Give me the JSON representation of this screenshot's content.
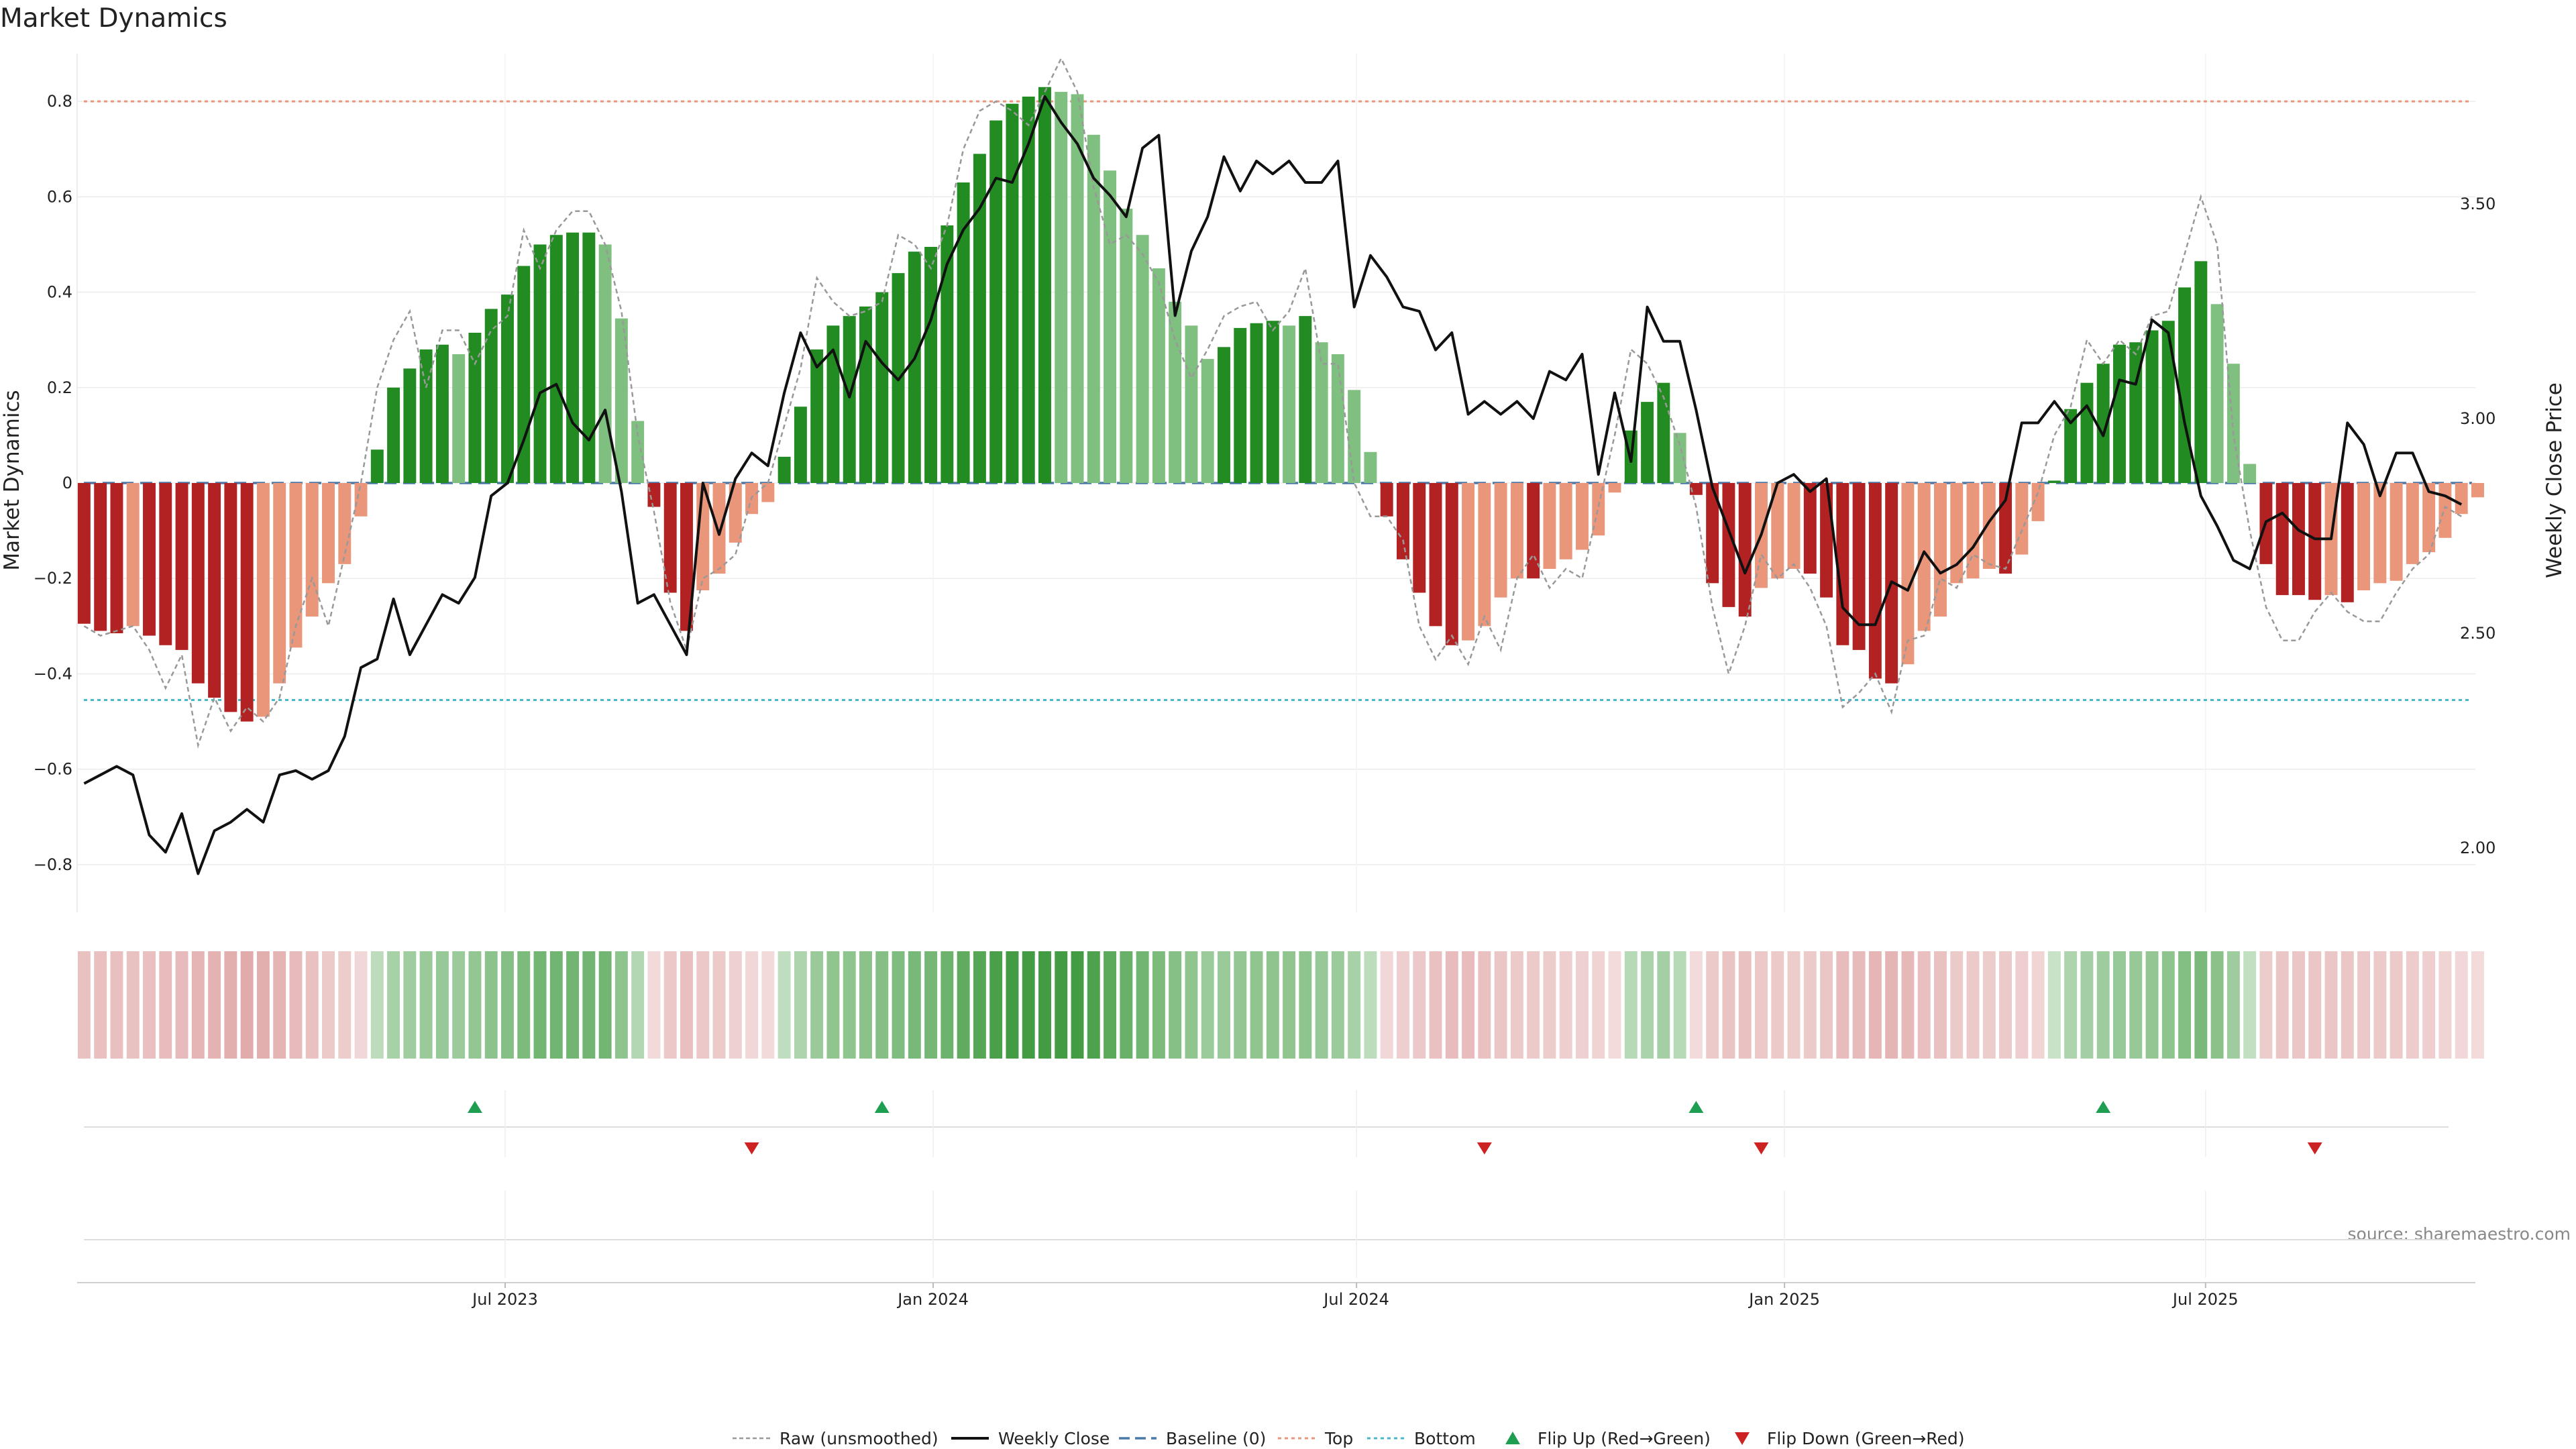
{
  "chart_data": {
    "type": "bar",
    "title": "Market Dynamics",
    "ylabel_left": "Market Dynamics",
    "ylabel_right": "Weekly Close Price",
    "source": "source: sharemaestro.com",
    "ylim_left": [
      -0.9,
      0.9
    ],
    "ylim_right": [
      1.85,
      3.85
    ],
    "yticks_left": [
      {
        "value": 0.8,
        "label": "0.8"
      },
      {
        "value": 0.6,
        "label": "0.6"
      },
      {
        "value": 0.4,
        "label": "0.4"
      },
      {
        "value": 0.2,
        "label": "0.2"
      },
      {
        "value": 0,
        "label": "0"
      },
      {
        "value": -0.2,
        "label": "−0.2"
      },
      {
        "value": -0.4,
        "label": "−0.4"
      },
      {
        "value": -0.6,
        "label": "−0.6"
      },
      {
        "value": -0.8,
        "label": "−0.8"
      }
    ],
    "yticks_right": [
      {
        "value": 3.5,
        "label": "3.50"
      },
      {
        "value": 3.0,
        "label": "3.00"
      },
      {
        "value": 2.5,
        "label": "2.50"
      },
      {
        "value": 2.0,
        "label": "2.00"
      }
    ],
    "x_start": "2023-01-01",
    "x_step_days": 7,
    "xlim": [
      "2022-12-29",
      "2025-10-25"
    ],
    "xticks": [
      {
        "date": "2023-07-01",
        "label": "Jul 2023"
      },
      {
        "date": "2024-01-01",
        "label": "Jan 2024"
      },
      {
        "date": "2024-07-01",
        "label": "Jul 2024"
      },
      {
        "date": "2025-01-01",
        "label": "Jan 2025"
      },
      {
        "date": "2025-07-01",
        "label": "Jul 2025"
      }
    ],
    "top_line": 0.8,
    "bottom_line": -0.455,
    "baseline": 0,
    "colors": {
      "strong_green": "#228B22",
      "light_green": "#7FBF7F",
      "strong_red": "#B22222",
      "light_red": "#E9967A",
      "close_line": "#111111",
      "raw_line": "#999999",
      "top_line": "#E9967A",
      "bottom_line": "#48B8C8",
      "baseline": "#4A78A8",
      "flip_up": "#1E9E50",
      "flip_down": "#CC2222"
    },
    "smoothed": [
      -0.295,
      -0.31,
      -0.315,
      -0.3,
      -0.32,
      -0.34,
      -0.35,
      -0.42,
      -0.45,
      -0.48,
      -0.5,
      -0.49,
      -0.42,
      -0.345,
      -0.28,
      -0.21,
      -0.17,
      -0.07,
      0.07,
      0.2,
      0.24,
      0.28,
      0.29,
      0.27,
      0.315,
      0.365,
      0.395,
      0.455,
      0.5,
      0.52,
      0.525,
      0.525,
      0.5,
      0.345,
      0.13,
      -0.05,
      -0.23,
      -0.31,
      -0.225,
      -0.19,
      -0.125,
      -0.065,
      -0.04,
      0.055,
      0.16,
      0.28,
      0.33,
      0.35,
      0.37,
      0.4,
      0.44,
      0.485,
      0.495,
      0.54,
      0.63,
      0.69,
      0.76,
      0.795,
      0.81,
      0.83,
      0.82,
      0.815,
      0.73,
      0.655,
      0.575,
      0.52,
      0.45,
      0.38,
      0.33,
      0.26,
      0.285,
      0.325,
      0.335,
      0.34,
      0.33,
      0.35,
      0.295,
      0.27,
      0.195,
      0.065,
      -0.07,
      -0.16,
      -0.23,
      -0.3,
      -0.34,
      -0.33,
      -0.3,
      -0.24,
      -0.2,
      -0.2,
      -0.18,
      -0.16,
      -0.14,
      -0.11,
      -0.02,
      0.11,
      0.17,
      0.21,
      0.105,
      -0.025,
      -0.21,
      -0.26,
      -0.28,
      -0.22,
      -0.2,
      -0.18,
      -0.19,
      -0.24,
      -0.34,
      -0.35,
      -0.41,
      -0.42,
      -0.38,
      -0.31,
      -0.28,
      -0.21,
      -0.2,
      -0.18,
      -0.19,
      -0.15,
      -0.08,
      0.005,
      0.155,
      0.21,
      0.25,
      0.29,
      0.295,
      0.32,
      0.34,
      0.41,
      0.465,
      0.375,
      0.25,
      0.04,
      -0.17,
      -0.235,
      -0.235,
      -0.245,
      -0.235,
      -0.25,
      -0.225,
      -0.21,
      -0.205,
      -0.17,
      -0.145,
      -0.115,
      -0.065,
      -0.03
    ],
    "raw": [
      -0.3,
      -0.32,
      -0.31,
      -0.3,
      -0.35,
      -0.43,
      -0.36,
      -0.55,
      -0.45,
      -0.52,
      -0.47,
      -0.5,
      -0.45,
      -0.3,
      -0.2,
      -0.3,
      -0.15,
      0.0,
      0.2,
      0.3,
      0.36,
      0.2,
      0.32,
      0.32,
      0.25,
      0.32,
      0.35,
      0.53,
      0.45,
      0.53,
      0.57,
      0.57,
      0.5,
      0.36,
      0.1,
      -0.06,
      -0.25,
      -0.35,
      -0.2,
      -0.18,
      -0.15,
      -0.03,
      0.0,
      0.12,
      0.24,
      0.43,
      0.38,
      0.35,
      0.36,
      0.38,
      0.52,
      0.5,
      0.45,
      0.54,
      0.7,
      0.78,
      0.8,
      0.78,
      0.75,
      0.82,
      0.89,
      0.82,
      0.62,
      0.5,
      0.52,
      0.48,
      0.42,
      0.3,
      0.22,
      0.28,
      0.35,
      0.37,
      0.38,
      0.32,
      0.36,
      0.45,
      0.25,
      0.25,
      0.0,
      -0.07,
      -0.07,
      -0.12,
      -0.3,
      -0.37,
      -0.32,
      -0.38,
      -0.28,
      -0.35,
      -0.2,
      -0.15,
      -0.22,
      -0.18,
      -0.2,
      -0.05,
      0.1,
      0.28,
      0.25,
      0.18,
      0.08,
      -0.05,
      -0.26,
      -0.4,
      -0.3,
      -0.15,
      -0.2,
      -0.17,
      -0.22,
      -0.3,
      -0.47,
      -0.44,
      -0.4,
      -0.48,
      -0.33,
      -0.32,
      -0.2,
      -0.22,
      -0.15,
      -0.17,
      -0.18,
      -0.1,
      -0.02,
      0.1,
      0.16,
      0.3,
      0.25,
      0.3,
      0.27,
      0.35,
      0.36,
      0.48,
      0.6,
      0.5,
      0.1,
      -0.1,
      -0.26,
      -0.33,
      -0.33,
      -0.27,
      -0.23,
      -0.27,
      -0.29,
      -0.29,
      -0.23,
      -0.18,
      -0.15,
      -0.05,
      -0.07
    ],
    "close": [
      2.15,
      2.17,
      2.19,
      2.17,
      2.03,
      1.99,
      2.08,
      1.94,
      2.04,
      2.06,
      2.09,
      2.06,
      2.17,
      2.18,
      2.16,
      2.18,
      2.26,
      2.42,
      2.44,
      2.58,
      2.45,
      2.52,
      2.59,
      2.57,
      2.63,
      2.82,
      2.85,
      2.95,
      3.06,
      3.08,
      2.99,
      2.95,
      3.02,
      2.83,
      2.57,
      2.59,
      2.52,
      2.45,
      2.85,
      2.73,
      2.86,
      2.92,
      2.89,
      3.06,
      3.2,
      3.12,
      3.16,
      3.05,
      3.18,
      3.13,
      3.09,
      3.14,
      3.23,
      3.36,
      3.44,
      3.49,
      3.56,
      3.55,
      3.64,
      3.75,
      3.69,
      3.64,
      3.56,
      3.52,
      3.47,
      3.63,
      3.66,
      3.24,
      3.39,
      3.47,
      3.61,
      3.53,
      3.6,
      3.57,
      3.6,
      3.55,
      3.55,
      3.6,
      3.26,
      3.38,
      3.33,
      3.26,
      3.25,
      3.16,
      3.2,
      3.01,
      3.04,
      3.01,
      3.04,
      3.0,
      3.11,
      3.09,
      3.15,
      2.87,
      3.06,
      2.9,
      3.26,
      3.18,
      3.18,
      3.02,
      2.84,
      2.74,
      2.64,
      2.73,
      2.85,
      2.87,
      2.83,
      2.86,
      2.56,
      2.52,
      2.52,
      2.62,
      2.6,
      2.69,
      2.64,
      2.66,
      2.7,
      2.76,
      2.81,
      2.99,
      2.99,
      3.04,
      2.99,
      3.03,
      2.96,
      3.09,
      3.08,
      3.23,
      3.2,
      2.99,
      2.82,
      2.75,
      2.67,
      2.65,
      2.76,
      2.78,
      2.74,
      2.72,
      2.72,
      2.99,
      2.94,
      2.82,
      2.92,
      2.92,
      2.83,
      2.82,
      2.8
    ],
    "flips_up": [
      "2023-06-18",
      "2023-12-10",
      "2024-11-24",
      "2025-05-18"
    ],
    "flips_down": [
      "2023-10-15",
      "2024-08-25",
      "2024-12-22",
      "2025-08-17"
    ],
    "legend": [
      {
        "label": "Raw (unsmoothed)",
        "kind": "raw"
      },
      {
        "label": "Weekly Close",
        "kind": "close"
      },
      {
        "label": "Baseline (0)",
        "kind": "baseline"
      },
      {
        "label": "Top",
        "kind": "top"
      },
      {
        "label": "Bottom",
        "kind": "bottom"
      },
      {
        "label": "Flip Up (Red→Green)",
        "kind": "up"
      },
      {
        "label": "Flip Down (Green→Red)",
        "kind": "down"
      }
    ]
  }
}
